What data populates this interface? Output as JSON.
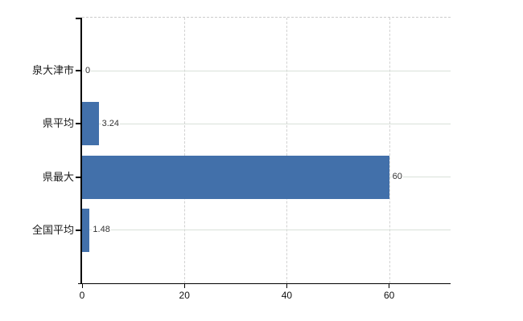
{
  "chart_data": {
    "type": "bar",
    "orientation": "horizontal",
    "title": "",
    "xlabel": "",
    "ylabel": "",
    "categories": [
      "泉大津市",
      "県平均",
      "県最大",
      "全国平均"
    ],
    "values": [
      0,
      3.24,
      60,
      1.48
    ],
    "value_labels": [
      "0",
      "3.24",
      "60",
      "1.48"
    ],
    "x_ticks": [
      0,
      20,
      40,
      60
    ],
    "x_tick_labels": [
      "0",
      "20",
      "40",
      "60"
    ],
    "xlim": [
      0,
      72
    ],
    "grid": true,
    "legend": false,
    "colors": {
      "bar": "#4270aa",
      "axis": "#000000",
      "category_line": "#d9e1d9",
      "grid_dash": "#d2d2d2",
      "category_text": "#1a1a1a",
      "value_text": "#333333",
      "background": "#ffffff"
    }
  }
}
